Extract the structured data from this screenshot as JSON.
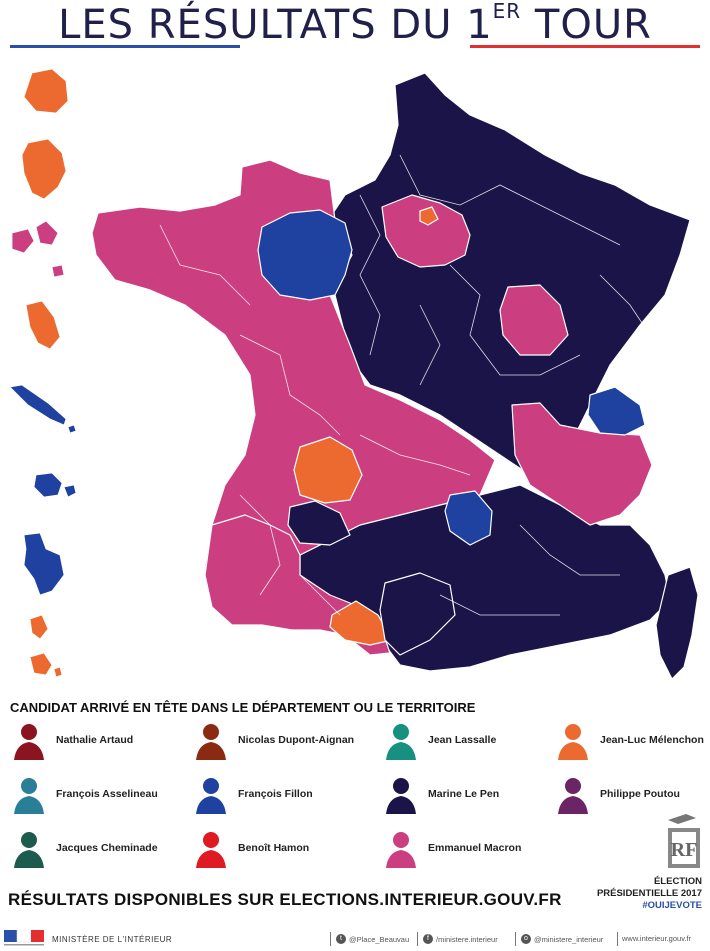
{
  "title": {
    "main": "LES RÉSULTATS DU 1",
    "sup": "ER",
    "tail": " TOUR"
  },
  "colors": {
    "le_pen": "#1b1448",
    "macron": "#cb3f80",
    "fillon": "#1f41a0",
    "melenchon": "#ec6a2f",
    "border": "#ffffff"
  },
  "map": {
    "territories": [
      "La Réunion",
      "Guyane",
      "Guadeloupe",
      "Martinique",
      "Nouvelle-Calédonie",
      "Polynésie française",
      "Mayotte",
      "Saint-Pierre-et-Miquelon",
      "Wallis-et-Futuna"
    ]
  },
  "legend": {
    "title": "CANDIDAT ARRIVÉ EN TÊTE DANS LE DÉPARTEMENT OU LE TERRITOIRE",
    "candidates": [
      {
        "name": "Nathalie Artaud",
        "color": "#8a1420"
      },
      {
        "name": "Nicolas Dupont-Aignan",
        "color": "#8a2a10"
      },
      {
        "name": "Jean Lassalle",
        "color": "#17907f"
      },
      {
        "name": "Jean-Luc Mélenchon",
        "color": "#ec6a2f"
      },
      {
        "name": "François Asselineau",
        "color": "#2a7f98"
      },
      {
        "name": "François Fillon",
        "color": "#1f41a0"
      },
      {
        "name": "Marine Le Pen",
        "color": "#1b1448"
      },
      {
        "name": "Philippe Poutou",
        "color": "#6b2466"
      },
      {
        "name": "Jacques Cheminade",
        "color": "#1d5b4f"
      },
      {
        "name": "Benoît Hamon",
        "color": "#e01a22"
      },
      {
        "name": "Emmanuel Macron",
        "color": "#cb3f80"
      }
    ]
  },
  "bottom": {
    "results_line": "RÉSULTATS DISPONIBLES SUR ELECTIONS.INTERIEUR.GOUV.FR",
    "election": "ÉLECTION",
    "presidential": "PRÉSIDENTIELLE 2017",
    "hashtag": "#OUIJEVOTE",
    "logo_text": "RF"
  },
  "footer": {
    "ministry": "MINISTÈRE DE L'INTÉRIEUR",
    "twitter": "@Place_Beauvau",
    "facebook": "/ministere.interieur",
    "instagram": "@ministere_interieur",
    "website": "www.interieur.gouv.fr"
  }
}
